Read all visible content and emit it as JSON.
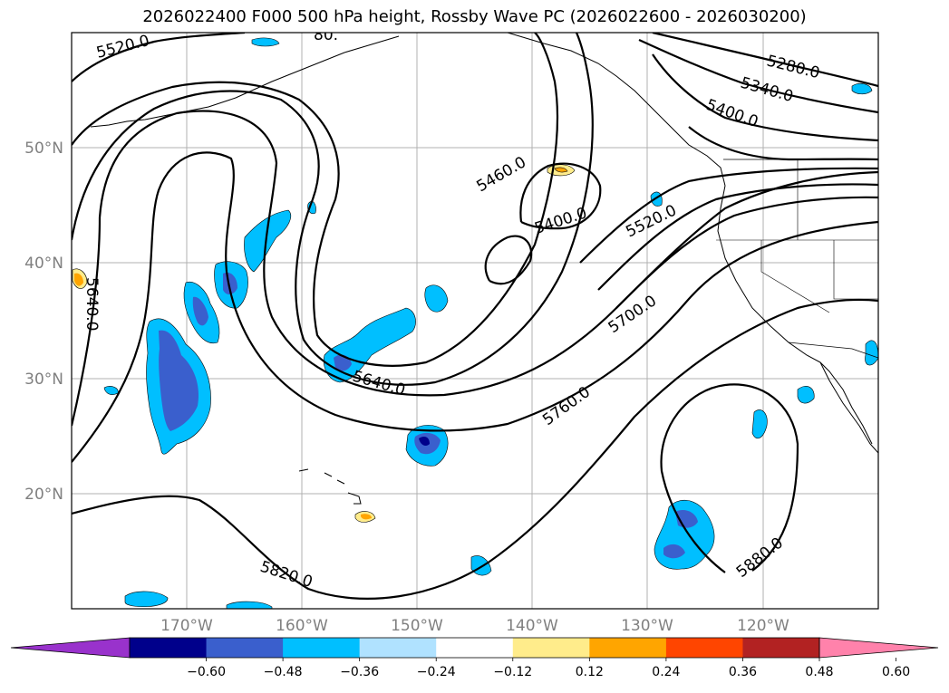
{
  "title": "2026022400 F000 500 hPa height, Rossby Wave PC (2026022600 - 2026030200)",
  "lat_labels": [
    "50°N",
    "40°N",
    "30°N",
    "20°N"
  ],
  "lon_labels": [
    "170°W",
    "160°W",
    "150°W",
    "140°W",
    "130°W",
    "120°W"
  ],
  "contour_labels": {
    "c5520_nw": "5520.0",
    "c5580_top": "80.",
    "c5280": "5280.0",
    "c5340": "5340.0",
    "c5400_ne": "5400.0",
    "c5460": "5460.0",
    "c5400_low": "5400.0",
    "c5520_e": "5520.0",
    "c5640_w": "5640.0",
    "c5700": "5700.0",
    "c5640_c": "5640.0",
    "c5760": "5760.0",
    "c5820": "5820.0",
    "c5880": "5880.0"
  },
  "colorbar": {
    "ticks": [
      "−0.60",
      "−0.48",
      "−0.36",
      "−0.24",
      "−0.12",
      "0.12",
      "0.24",
      "0.36",
      "0.48",
      "0.60"
    ],
    "colors": [
      "#9932cc",
      "#00008b",
      "#3a5fcd",
      "#00bfff",
      "#b0e2ff",
      "#ffffff",
      "#ffec8b",
      "#ffa500",
      "#ff4500",
      "#b22222",
      "#ff82ab"
    ]
  }
}
